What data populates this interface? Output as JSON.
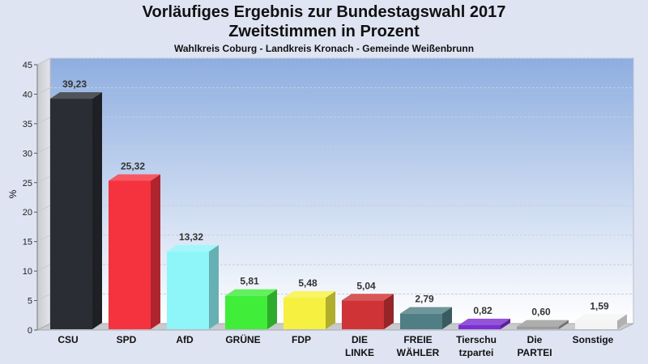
{
  "chart_data": {
    "type": "bar",
    "title_lines": [
      "Vorläufiges Ergebnis zur Bundestagswahl 2017",
      "Zweitstimmen in Prozent"
    ],
    "subtitle": "Wahlkreis Coburg - Landkreis Kronach - Gemeinde Weißenbrunn",
    "ylabel": "%",
    "ylim": [
      0,
      45
    ],
    "yticks": [
      0,
      5,
      10,
      15,
      20,
      25,
      30,
      35,
      40,
      45
    ],
    "grid": true,
    "categories": [
      [
        "CSU"
      ],
      [
        "SPD"
      ],
      [
        "AfD"
      ],
      [
        "GRÜNE"
      ],
      [
        "FDP"
      ],
      [
        "DIE",
        "LINKE"
      ],
      [
        "FREIE",
        "WÄHLER"
      ],
      [
        "Tierschu",
        "tzpartei"
      ],
      [
        "Die",
        "PARTEI"
      ],
      [
        "Sonstige"
      ]
    ],
    "values": [
      39.23,
      25.32,
      13.32,
      5.81,
      5.48,
      5.04,
      2.79,
      0.82,
      0.6,
      1.59
    ],
    "value_labels": [
      "39,23",
      "25,32",
      "13,32",
      "5,81",
      "5,48",
      "5,04",
      "2,79",
      "0,82",
      "0,60",
      "1,59"
    ],
    "colors": [
      "#2a2d33",
      "#f5333f",
      "#8ef5f9",
      "#40ee3a",
      "#f6f140",
      "#cf3336",
      "#4f7f85",
      "#7b2fd2",
      "#9c9c9c",
      "#f4f4f4"
    ]
  }
}
